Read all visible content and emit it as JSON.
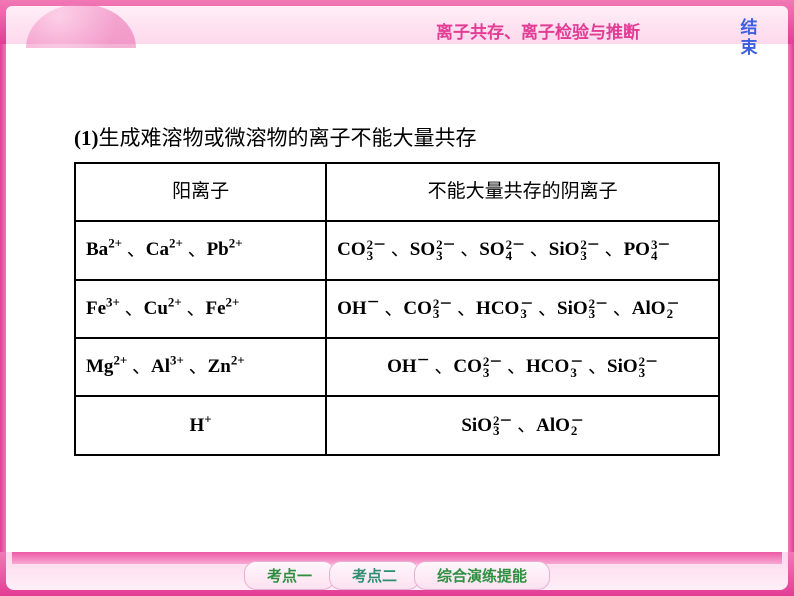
{
  "header": {
    "title": "离子共存、离子检验与推断",
    "endLink": "结束"
  },
  "colors": {
    "accent_pink": "#e23d95",
    "accent_blue": "#3b5fe0",
    "tab_green": "#2d8f3f",
    "tab_teal": "#2d8f6f",
    "border": "#000000",
    "bg": "#ffffff"
  },
  "section": {
    "number": "(1)",
    "text": "生成难溶物或微溶物的离子不能大量共存"
  },
  "table": {
    "headers": {
      "cation": "阳离子",
      "anion": "不能大量共存的阴离子"
    },
    "rows": [
      {
        "cations": [
          {
            "base": "Ba",
            "sup": "2+"
          },
          {
            "base": "Ca",
            "sup": "2+"
          },
          {
            "base": "Pb",
            "sup": "2+"
          }
        ],
        "anions": [
          {
            "base": "CO",
            "sub": "3",
            "sup": "2－"
          },
          {
            "base": "SO",
            "sub": "3",
            "sup": "2－"
          },
          {
            "base": "SO",
            "sub": "4",
            "sup": "2－"
          },
          {
            "base": "SiO",
            "sub": "3",
            "sup": "2－"
          },
          {
            "base": "PO",
            "sub": "4",
            "sup": "3－"
          }
        ],
        "anion_align": "left"
      },
      {
        "cations": [
          {
            "base": "Fe",
            "sup": "3+"
          },
          {
            "base": "Cu",
            "sup": "2+"
          },
          {
            "base": "Fe",
            "sup": "2+"
          }
        ],
        "anions": [
          {
            "base": "OH",
            "sup": "－"
          },
          {
            "base": "CO",
            "sub": "3",
            "sup": "2－"
          },
          {
            "base": "HCO",
            "sub": "3",
            "sup": "－"
          },
          {
            "base": "SiO",
            "sub": "3",
            "sup": "2－"
          },
          {
            "base": "AlO",
            "sub": "2",
            "sup": "－"
          }
        ],
        "anion_align": "left"
      },
      {
        "cations": [
          {
            "base": "Mg",
            "sup": "2+"
          },
          {
            "base": "Al",
            "sup": "3+"
          },
          {
            "base": "Zn",
            "sup": "2+"
          }
        ],
        "anions": [
          {
            "base": "OH",
            "sup": "－"
          },
          {
            "base": "CO",
            "sub": "3",
            "sup": "2－"
          },
          {
            "base": "HCO",
            "sub": "3",
            "sup": "－"
          },
          {
            "base": "SiO",
            "sub": "3",
            "sup": "2－"
          }
        ],
        "anion_align": "center"
      },
      {
        "cations": [
          {
            "base": "H",
            "sup": "+"
          }
        ],
        "cation_align": "center",
        "anions": [
          {
            "base": "SiO",
            "sub": "3",
            "sup": "2－"
          },
          {
            "base": "AlO",
            "sub": "2",
            "sup": "－"
          }
        ],
        "anion_align": "center"
      }
    ]
  },
  "navTabs": [
    {
      "label": "考点一",
      "color": "green"
    },
    {
      "label": "考点二",
      "color": "teal"
    },
    {
      "label": "综合演练提能",
      "color": "green"
    }
  ],
  "separator": "、"
}
